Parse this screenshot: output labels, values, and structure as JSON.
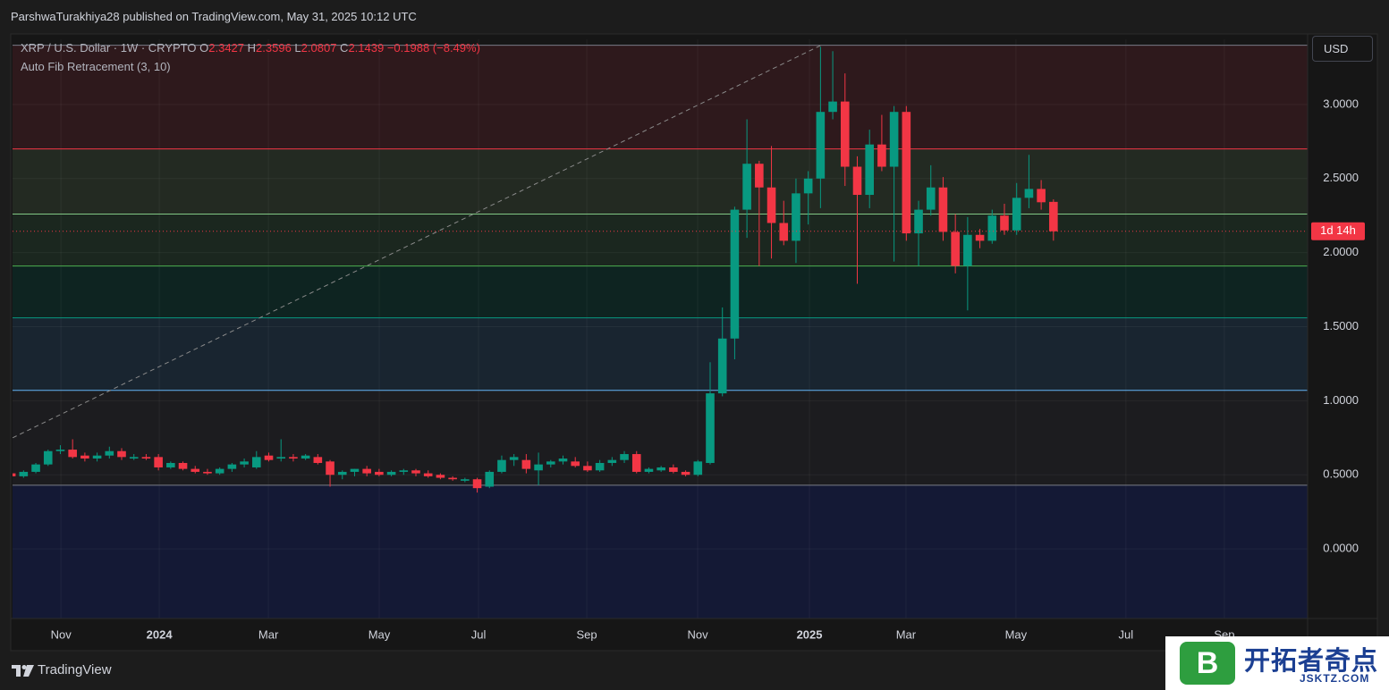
{
  "chart_data": {
    "type": "candlestick",
    "publisher": "ParshwaTurakhiya28 published on TradingView.com, May 31, 2025 10:12 UTC",
    "title": "XRP / U.S. Dollar · 1W · CRYPTO",
    "ohlc_labels": [
      "O",
      "H",
      "L",
      "C"
    ],
    "change": "−0.1988 (−8.49%)",
    "indicator": "Auto Fib Retracement (3, 10)",
    "currency": "USD",
    "countdown": "1d 14h",
    "brand": "TradingView",
    "watermark": {
      "logo": "B",
      "name": "开拓者奇点",
      "site": "JSKTZ.COM"
    },
    "up_color": "#089981",
    "down_color": "#f23645",
    "grid": true,
    "open": [
      0.51,
      0.49,
      0.52,
      0.57,
      0.66,
      0.67,
      0.63,
      0.61,
      0.63,
      0.66,
      0.61,
      0.62,
      0.62,
      0.55,
      0.58,
      0.54,
      0.52,
      0.51,
      0.54,
      0.57,
      0.55,
      0.63,
      0.61,
      0.62,
      0.61,
      0.62,
      0.59,
      0.5,
      0.52,
      0.54,
      0.52,
      0.5,
      0.52,
      0.53,
      0.51,
      0.5,
      0.48,
      0.46,
      0.47,
      0.42,
      0.52,
      0.6,
      0.6,
      0.53,
      0.57,
      0.59,
      0.59,
      0.56,
      0.53,
      0.58,
      0.6,
      0.64,
      0.52,
      0.53,
      0.55,
      0.52,
      0.5,
      0.58,
      1.05,
      1.42,
      2.29,
      2.6,
      2.44,
      2.2,
      2.08,
      2.4,
      2.5,
      2.95,
      3.02,
      2.58,
      2.39,
      2.73,
      2.58,
      2.95,
      2.13,
      2.29,
      2.44,
      2.14,
      1.91,
      2.12,
      2.08,
      2.25,
      2.15,
      2.37,
      2.43,
      2.3427
    ],
    "high": [
      0.53,
      0.53,
      0.58,
      0.67,
      0.7,
      0.74,
      0.65,
      0.65,
      0.69,
      0.68,
      0.64,
      0.64,
      0.64,
      0.59,
      0.59,
      0.56,
      0.54,
      0.55,
      0.58,
      0.61,
      0.66,
      0.65,
      0.74,
      0.64,
      0.64,
      0.64,
      0.6,
      0.53,
      0.54,
      0.56,
      0.54,
      0.53,
      0.54,
      0.54,
      0.53,
      0.51,
      0.49,
      0.48,
      0.48,
      0.53,
      0.63,
      0.64,
      0.64,
      0.65,
      0.6,
      0.63,
      0.62,
      0.59,
      0.6,
      0.62,
      0.66,
      0.66,
      0.55,
      0.56,
      0.57,
      0.53,
      0.6,
      1.26,
      1.63,
      2.31,
      2.9,
      2.62,
      2.72,
      2.35,
      2.5,
      2.55,
      3.39,
      3.36,
      3.21,
      2.65,
      2.83,
      2.93,
      2.99,
      2.99,
      2.35,
      2.59,
      2.51,
      2.26,
      2.24,
      2.16,
      2.29,
      2.33,
      2.47,
      2.66,
      2.49,
      2.3596
    ],
    "low": [
      0.48,
      0.48,
      0.51,
      0.56,
      0.64,
      0.61,
      0.59,
      0.59,
      0.61,
      0.6,
      0.6,
      0.6,
      0.53,
      0.54,
      0.53,
      0.51,
      0.5,
      0.5,
      0.52,
      0.55,
      0.54,
      0.59,
      0.59,
      0.59,
      0.6,
      0.57,
      0.42,
      0.47,
      0.49,
      0.49,
      0.49,
      0.49,
      0.5,
      0.49,
      0.48,
      0.47,
      0.46,
      0.45,
      0.38,
      0.41,
      0.51,
      0.56,
      0.51,
      0.43,
      0.55,
      0.57,
      0.55,
      0.52,
      0.52,
      0.56,
      0.58,
      0.51,
      0.51,
      0.52,
      0.51,
      0.49,
      0.49,
      0.57,
      1.03,
      1.28,
      2.1,
      1.91,
      1.96,
      2.05,
      1.93,
      2.19,
      2.3,
      2.9,
      2.45,
      1.79,
      2.3,
      2.55,
      1.94,
      2.08,
      1.91,
      2.25,
      2.08,
      1.86,
      1.61,
      2.03,
      2.06,
      2.12,
      2.12,
      2.3,
      2.29,
      2.0807
    ],
    "close": [
      0.49,
      0.52,
      0.57,
      0.66,
      0.67,
      0.62,
      0.61,
      0.63,
      0.66,
      0.62,
      0.62,
      0.61,
      0.55,
      0.58,
      0.54,
      0.52,
      0.51,
      0.54,
      0.57,
      0.59,
      0.62,
      0.6,
      0.62,
      0.61,
      0.63,
      0.58,
      0.5,
      0.52,
      0.54,
      0.51,
      0.5,
      0.52,
      0.53,
      0.51,
      0.49,
      0.48,
      0.47,
      0.47,
      0.41,
      0.52,
      0.6,
      0.62,
      0.54,
      0.57,
      0.59,
      0.61,
      0.56,
      0.53,
      0.58,
      0.6,
      0.64,
      0.52,
      0.54,
      0.55,
      0.52,
      0.5,
      0.59,
      1.05,
      1.42,
      2.29,
      2.6,
      2.44,
      2.2,
      2.08,
      2.4,
      2.5,
      2.95,
      3.02,
      2.58,
      2.39,
      2.73,
      2.58,
      2.95,
      2.13,
      2.29,
      2.44,
      2.14,
      1.91,
      2.12,
      2.08,
      2.25,
      2.15,
      2.37,
      2.43,
      2.34,
      2.1439
    ],
    "xlim": [
      0.1,
      105.73
    ],
    "xticks": [
      {
        "value": 4.05,
        "label": "Nov"
      },
      {
        "value": 12.07,
        "label": "2024"
      },
      {
        "value": 20.97,
        "label": "Mar"
      },
      {
        "value": 30.01,
        "label": "May"
      },
      {
        "value": 38.11,
        "label": "Jul"
      },
      {
        "value": 46.94,
        "label": "Sep"
      },
      {
        "value": 55.98,
        "label": "Nov"
      },
      {
        "value": 65.1,
        "label": "2025"
      },
      {
        "value": 72.97,
        "label": "Mar"
      },
      {
        "value": 81.94,
        "label": "May"
      },
      {
        "value": 90.91,
        "label": "Jul"
      },
      {
        "value": 98.94,
        "label": "Sep"
      }
    ],
    "ylim": [
      -0.47,
      3.44
    ],
    "yticks": [
      {
        "value": 0,
        "label": "0.0000"
      },
      {
        "value": 0.5,
        "label": "0.5000"
      },
      {
        "value": 1,
        "label": "1.0000"
      },
      {
        "value": 1.5,
        "label": "1.5000"
      },
      {
        "value": 2,
        "label": "2.0000"
      },
      {
        "value": 2.5,
        "label": "2.5000"
      },
      {
        "value": 3,
        "label": "3.0000"
      }
    ],
    "fib_levels": [
      {
        "value": 3.4,
        "color": "#787b86",
        "fill": "#2e191c"
      },
      {
        "value": 2.7,
        "color": "#f23645",
        "fill": "#232a22"
      },
      {
        "value": 2.26,
        "color": "#81c784",
        "fill": "#1b271f"
      },
      {
        "value": 1.91,
        "color": "#4caf50",
        "fill": "#0e2421"
      },
      {
        "value": 1.56,
        "color": "#089981",
        "fill": "#192530"
      },
      {
        "value": 1.07,
        "color": "#64b5f6",
        "fill": "#1c1c1f"
      },
      {
        "value": 0.43,
        "color": "#787b86",
        "fill": "#141935"
      }
    ],
    "trend_line": {
      "x": [
        0.11,
        66.05
      ],
      "y": [
        0.75,
        3.4
      ]
    }
  }
}
